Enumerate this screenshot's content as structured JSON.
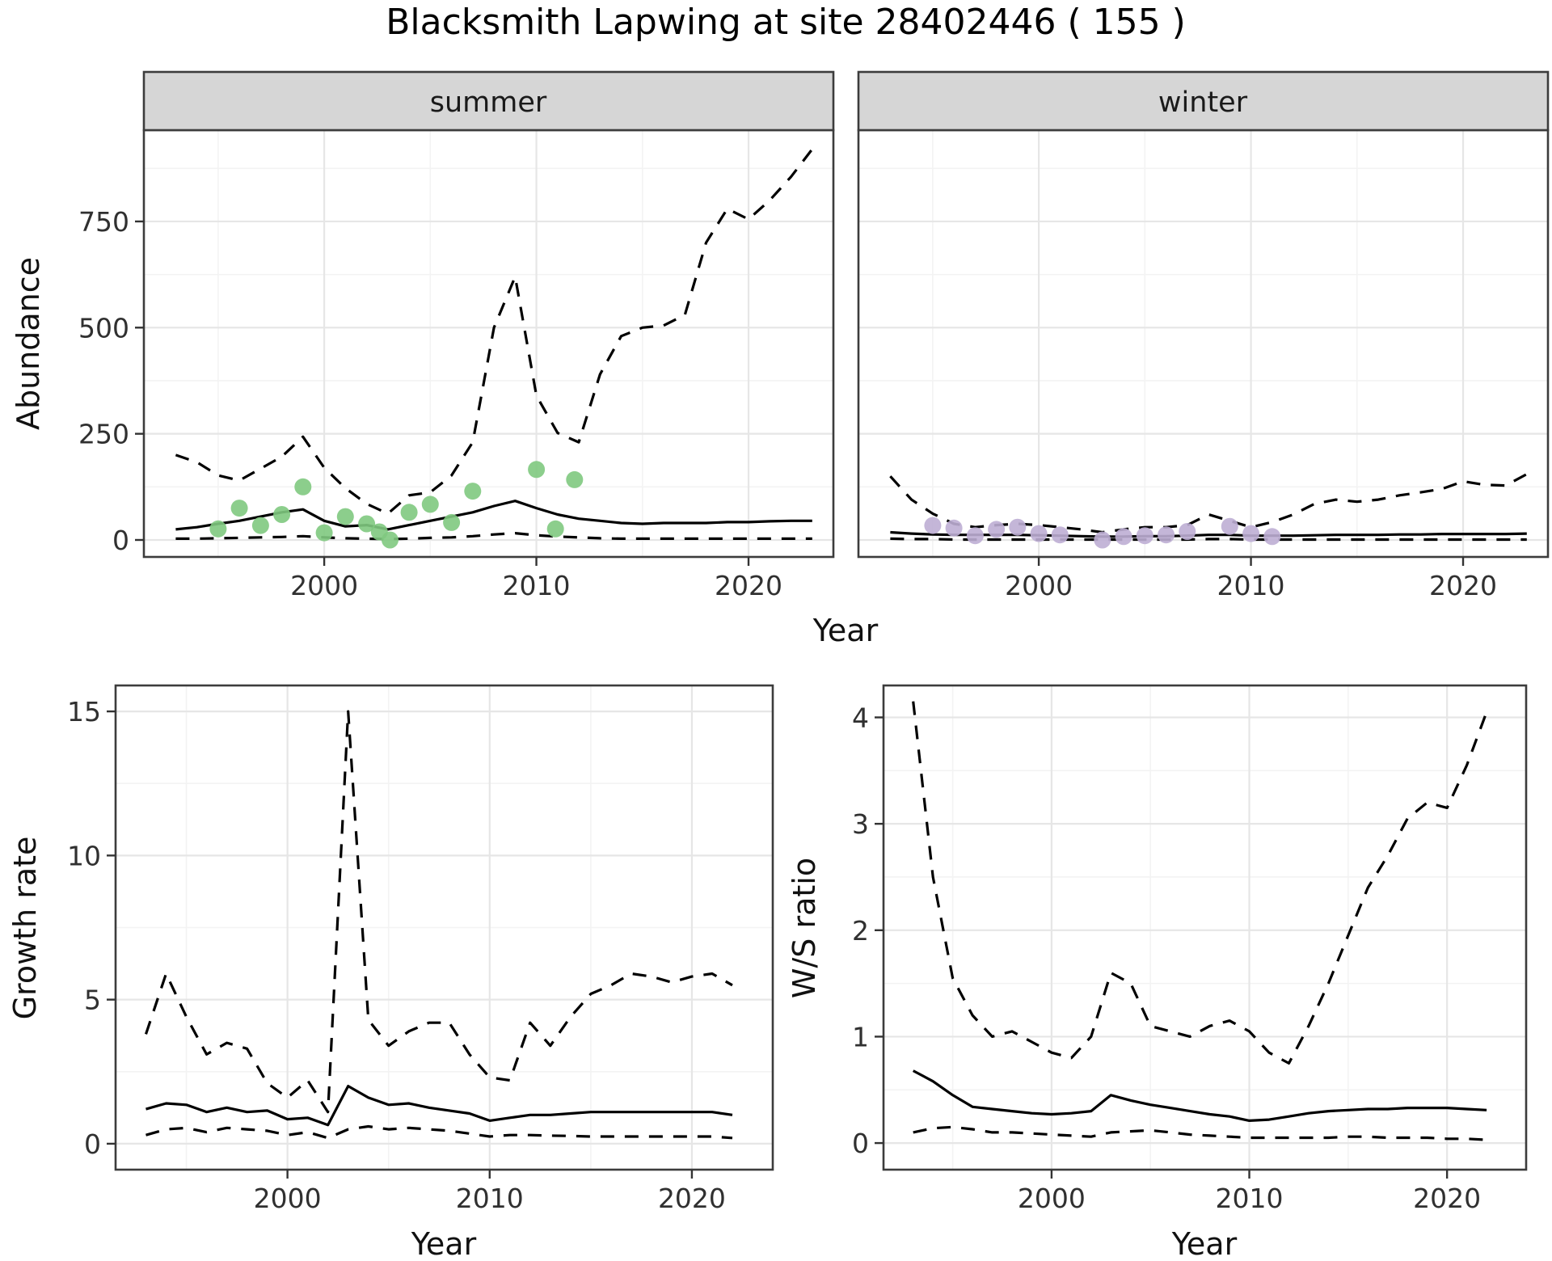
{
  "title": "Blacksmith Lapwing at site 28402446 ( 155 )",
  "colors": {
    "summer_points": "#7FC97F",
    "winter_points": "#BEAED4",
    "line": "#000000",
    "strip_bg": "#D6D6D6",
    "panel_border": "#3C3C3C",
    "grid_major": "#E6E6E6",
    "grid_minor": "#F3F3F3"
  },
  "chart_data": [
    {
      "type": "line",
      "panel": "abundance-summer",
      "facet_label": "summer",
      "xlabel": "Year",
      "ylabel": "Abundance",
      "xlim": [
        1991.5,
        2024
      ],
      "ylim": [
        -40,
        965
      ],
      "xticks": [
        2000,
        2010,
        2020
      ],
      "yticks": [
        0,
        250,
        500,
        750
      ],
      "x": [
        1993,
        1994,
        1995,
        1996,
        1997,
        1998,
        1999,
        2000,
        2001,
        2002,
        2003,
        2004,
        2005,
        2006,
        2007,
        2008,
        2009,
        2010,
        2011,
        2012,
        2013,
        2014,
        2015,
        2016,
        2017,
        2018,
        2019,
        2020,
        2021,
        2022,
        2023
      ],
      "series": [
        {
          "name": "upper-credible",
          "style": "dashed",
          "values": [
            200,
            183,
            152,
            140,
            168,
            196,
            243,
            170,
            122,
            85,
            62,
            105,
            112,
            152,
            230,
            500,
            620,
            340,
            252,
            230,
            390,
            480,
            500,
            505,
            530,
            700,
            780,
            755,
            800,
            855,
            920
          ]
        },
        {
          "name": "median",
          "style": "solid",
          "values": [
            25,
            30,
            38,
            45,
            55,
            65,
            72,
            45,
            32,
            35,
            25,
            35,
            45,
            55,
            65,
            80,
            92,
            75,
            60,
            50,
            45,
            40,
            38,
            40,
            40,
            40,
            42,
            42,
            44,
            45,
            45
          ]
        },
        {
          "name": "lower-credible",
          "style": "dashed",
          "values": [
            3,
            3,
            4,
            5,
            6,
            7,
            9,
            6,
            4,
            3,
            2,
            3,
            5,
            6,
            9,
            13,
            16,
            11,
            8,
            6,
            4,
            3,
            3,
            3,
            3,
            3,
            3,
            3,
            3,
            3,
            3
          ]
        }
      ],
      "points": {
        "name": "observed-counts",
        "color": "#7FC97F",
        "x": [
          1995,
          1996,
          1997,
          1998,
          1999,
          2000,
          2001,
          2002,
          2002.6,
          2003.1,
          2004,
          2005,
          2006,
          2007,
          2010,
          2010.9,
          2011.8
        ],
        "y": [
          26,
          75,
          34,
          60,
          125,
          17,
          55,
          38,
          19,
          0,
          65,
          84,
          41,
          115,
          166,
          26,
          142
        ]
      }
    },
    {
      "type": "line",
      "panel": "abundance-winter",
      "facet_label": "winter",
      "xlabel": "Year",
      "ylabel": "Abundance",
      "xlim": [
        1991.5,
        2024
      ],
      "ylim": [
        -40,
        965
      ],
      "xticks": [
        2000,
        2010,
        2020
      ],
      "yticks": [
        0,
        250,
        500,
        750
      ],
      "x": [
        1993,
        1994,
        1995,
        1996,
        1997,
        1998,
        1999,
        2000,
        2001,
        2002,
        2003,
        2004,
        2005,
        2006,
        2007,
        2008,
        2009,
        2010,
        2011,
        2012,
        2013,
        2014,
        2015,
        2016,
        2017,
        2018,
        2019,
        2020,
        2021,
        2022,
        2023
      ],
      "series": [
        {
          "name": "upper-credible",
          "style": "dashed",
          "values": [
            150,
            95,
            62,
            38,
            30,
            35,
            38,
            35,
            30,
            25,
            18,
            25,
            30,
            30,
            35,
            60,
            45,
            30,
            42,
            60,
            85,
            95,
            90,
            95,
            105,
            112,
            120,
            138,
            130,
            128,
            155
          ]
        },
        {
          "name": "median",
          "style": "solid",
          "values": [
            18,
            15,
            13,
            12,
            12,
            12,
            12,
            11,
            10,
            9,
            8,
            8,
            9,
            9,
            10,
            12,
            12,
            10,
            10,
            10,
            11,
            12,
            12,
            12,
            13,
            13,
            14,
            14,
            14,
            14,
            15
          ]
        },
        {
          "name": "lower-credible",
          "style": "dashed",
          "values": [
            3,
            2,
            2,
            1,
            1,
            1,
            1,
            1,
            1,
            1,
            1,
            1,
            1,
            1,
            1,
            2,
            2,
            1,
            1,
            1,
            1,
            1,
            1,
            1,
            1,
            1,
            1,
            1,
            1,
            1,
            1
          ]
        }
      ],
      "points": {
        "name": "observed-counts",
        "color": "#BEAED4",
        "x": [
          1995,
          1996,
          1997,
          1998,
          1999,
          2000,
          2001,
          2003,
          2004,
          2005,
          2006,
          2007,
          2009,
          2010,
          2011
        ],
        "y": [
          34,
          28,
          10,
          25,
          30,
          15,
          12,
          0,
          8,
          10,
          12,
          20,
          32,
          15,
          8
        ]
      }
    },
    {
      "type": "line",
      "panel": "growth-rate",
      "facet_label": "",
      "xlabel": "Year",
      "ylabel": "Growth rate",
      "xlim": [
        1991.5,
        2024
      ],
      "ylim": [
        -0.9,
        15.9
      ],
      "xticks": [
        2000,
        2010,
        2020
      ],
      "yticks": [
        0,
        5,
        10,
        15
      ],
      "x": [
        1993,
        1994,
        1995,
        1996,
        1997,
        1998,
        1999,
        2000,
        2001,
        2002,
        2003,
        2004,
        2005,
        2006,
        2007,
        2008,
        2009,
        2010,
        2011,
        2012,
        2013,
        2014,
        2015,
        2016,
        2017,
        2018,
        2019,
        2020,
        2021,
        2022
      ],
      "series": [
        {
          "name": "upper-credible",
          "style": "dashed",
          "values": [
            3.8,
            5.9,
            4.4,
            3.1,
            3.5,
            3.3,
            2.1,
            1.6,
            2.2,
            1.1,
            15.0,
            4.3,
            3.4,
            3.9,
            4.2,
            4.2,
            3.1,
            2.3,
            2.2,
            4.2,
            3.4,
            4.4,
            5.2,
            5.5,
            5.9,
            5.8,
            5.6,
            5.8,
            5.9,
            5.5
          ]
        },
        {
          "name": "median",
          "style": "solid",
          "values": [
            1.2,
            1.4,
            1.35,
            1.1,
            1.25,
            1.1,
            1.15,
            0.85,
            0.9,
            0.65,
            2.0,
            1.6,
            1.35,
            1.4,
            1.25,
            1.15,
            1.05,
            0.8,
            0.9,
            1.0,
            1.0,
            1.05,
            1.1,
            1.1,
            1.1,
            1.1,
            1.1,
            1.1,
            1.1,
            1.0
          ]
        },
        {
          "name": "lower-credible",
          "style": "dashed",
          "values": [
            0.3,
            0.5,
            0.55,
            0.4,
            0.55,
            0.5,
            0.45,
            0.3,
            0.4,
            0.2,
            0.5,
            0.6,
            0.5,
            0.55,
            0.5,
            0.45,
            0.35,
            0.25,
            0.3,
            0.3,
            0.28,
            0.27,
            0.25,
            0.25,
            0.25,
            0.25,
            0.25,
            0.25,
            0.25,
            0.2
          ]
        }
      ]
    },
    {
      "type": "line",
      "panel": "ws-ratio",
      "facet_label": "",
      "xlabel": "Year",
      "ylabel": "W/S ratio",
      "xlim": [
        1991.5,
        2024
      ],
      "ylim": [
        -0.25,
        4.3
      ],
      "xticks": [
        2000,
        2010,
        2020
      ],
      "yticks": [
        0,
        1,
        2,
        3,
        4
      ],
      "x": [
        1993,
        1994,
        1995,
        1996,
        1997,
        1998,
        1999,
        2000,
        2001,
        2002,
        2003,
        2004,
        2005,
        2006,
        2007,
        2008,
        2009,
        2010,
        2011,
        2012,
        2013,
        2014,
        2015,
        2016,
        2017,
        2018,
        2019,
        2020,
        2021,
        2022
      ],
      "series": [
        {
          "name": "upper-credible",
          "style": "dashed",
          "values": [
            4.15,
            2.5,
            1.55,
            1.2,
            1.0,
            1.05,
            0.95,
            0.85,
            0.8,
            1.0,
            1.6,
            1.5,
            1.1,
            1.05,
            1.0,
            1.1,
            1.15,
            1.05,
            0.85,
            0.75,
            1.1,
            1.5,
            1.95,
            2.4,
            2.7,
            3.05,
            3.2,
            3.15,
            3.55,
            4.05
          ]
        },
        {
          "name": "median",
          "style": "solid",
          "values": [
            0.68,
            0.58,
            0.45,
            0.34,
            0.32,
            0.3,
            0.28,
            0.27,
            0.28,
            0.3,
            0.45,
            0.4,
            0.36,
            0.33,
            0.3,
            0.27,
            0.25,
            0.21,
            0.22,
            0.25,
            0.28,
            0.3,
            0.31,
            0.32,
            0.32,
            0.33,
            0.33,
            0.33,
            0.32,
            0.31
          ]
        },
        {
          "name": "lower-credible",
          "style": "dashed",
          "values": [
            0.1,
            0.14,
            0.15,
            0.13,
            0.1,
            0.1,
            0.09,
            0.08,
            0.07,
            0.06,
            0.1,
            0.11,
            0.12,
            0.1,
            0.08,
            0.07,
            0.06,
            0.05,
            0.05,
            0.05,
            0.05,
            0.05,
            0.06,
            0.06,
            0.05,
            0.05,
            0.05,
            0.04,
            0.04,
            0.03
          ]
        }
      ]
    }
  ]
}
